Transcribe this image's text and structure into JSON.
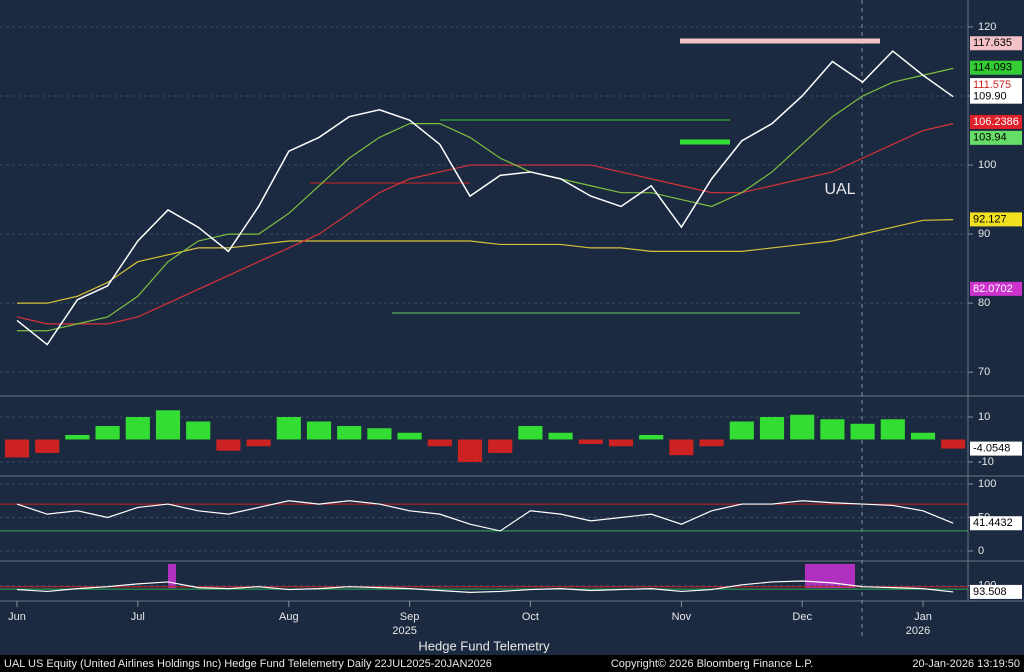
{
  "chart_data": [
    {
      "type": "line",
      "categories": [
        "Jun",
        null,
        null,
        null,
        "Jul",
        null,
        null,
        null,
        null,
        "Aug",
        null,
        null,
        null,
        "Sep",
        null,
        null,
        null,
        "Oct",
        null,
        null,
        null,
        null,
        "Nov",
        null,
        null,
        null,
        "Dec",
        null,
        null,
        null,
        "Jan",
        null
      ],
      "year_labels": [
        "2025",
        "2026"
      ],
      "series": [
        {
          "color": "#ffffff",
          "values": [
            77.5,
            74,
            80.5,
            82.5,
            89,
            93.5,
            91,
            87.5,
            94,
            102,
            104,
            107,
            108,
            106.5,
            103,
            95.5,
            98.5,
            99,
            98,
            95.5,
            94,
            97,
            91,
            98,
            103.5,
            106,
            110,
            115,
            112,
            116.5,
            113,
            109.9
          ]
        },
        {
          "color": "#7fbf3f",
          "values": [
            76,
            76,
            77,
            78,
            81,
            86,
            89,
            90,
            90,
            93,
            97,
            101,
            104,
            106,
            106,
            104,
            101,
            99,
            98,
            97,
            96,
            96,
            95,
            94,
            96,
            99,
            103,
            107,
            110,
            112,
            113,
            114
          ]
        },
        {
          "color": "#d8333a",
          "values": [
            78,
            77,
            77,
            77,
            78,
            80,
            82,
            84,
            86,
            88,
            90,
            93,
            96,
            98,
            99,
            100,
            100,
            100,
            100,
            100,
            99,
            98,
            97,
            96,
            96,
            97,
            98,
            99,
            101,
            103,
            105,
            106
          ]
        },
        {
          "color": "#d9c23a",
          "values": [
            80,
            80,
            81,
            83,
            86,
            87,
            88,
            88,
            88.5,
            89,
            89,
            89,
            89,
            89,
            89,
            89,
            88.5,
            88.5,
            88.5,
            88,
            88,
            87.5,
            87.5,
            87.5,
            87.5,
            88,
            88.5,
            89,
            90,
            91,
            92,
            92.1
          ]
        }
      ],
      "ylim": [
        66.7,
        123.9
      ],
      "yticks": [
        70,
        80,
        90,
        100,
        110,
        120
      ],
      "annotation": "UAL",
      "price_labels": [
        {
          "value": 117.635,
          "color": "#f4c2c6"
        },
        {
          "value": 114.093,
          "color": "#33cc33"
        },
        {
          "value": 111.575,
          "color": "#ffffff"
        },
        {
          "value": 109.9,
          "label": "109.90",
          "color": "#ffffff"
        },
        {
          "value": 106.2386,
          "color": "#e0202a"
        },
        {
          "value": 103.94,
          "color": "#66dd66"
        },
        {
          "value": 92.127,
          "color": "#f0e020"
        },
        {
          "value": 82.0702,
          "color": "#cc33cc"
        }
      ]
    },
    {
      "type": "histogram-bar",
      "values": [
        -8,
        -6,
        2,
        6,
        10,
        13,
        8,
        -5,
        -3,
        10,
        8,
        6,
        5,
        3,
        -3,
        -10,
        -6,
        6,
        3,
        -2,
        -3,
        2,
        -7,
        -3,
        8,
        10,
        11,
        9,
        7,
        9,
        3,
        -4.0548
      ],
      "colors": {
        "positive": "#33dd33",
        "negative": "#cc2222"
      },
      "ylim": [
        -15.8,
        18.9
      ],
      "yticks": [
        -10,
        10
      ],
      "last_label": -4.0548
    },
    {
      "type": "line",
      "values": [
        70,
        55,
        60,
        50,
        65,
        70,
        60,
        55,
        65,
        75,
        70,
        75,
        70,
        60,
        55,
        40,
        30,
        60,
        55,
        45,
        50,
        55,
        40,
        60,
        70,
        70,
        75,
        72,
        70,
        68,
        60,
        41.4432
      ],
      "color": "#ffffff",
      "levels": [
        {
          "value": 70,
          "color": "#cc2222"
        },
        {
          "value": 30,
          "color": "#33aa55"
        }
      ],
      "ylim": [
        -13.4,
        110.4
      ],
      "yticks": [
        0,
        50,
        100
      ],
      "last_label": 41.4432
    },
    {
      "type": "line",
      "values": [
        96,
        94,
        97,
        99,
        102,
        104,
        98,
        97,
        99,
        96,
        97,
        99,
        98,
        97,
        95,
        93,
        94,
        96,
        97,
        95,
        96,
        97,
        94,
        96,
        101,
        104,
        105,
        103,
        99,
        98,
        97,
        93.508
      ],
      "color": "#ffffff",
      "levels": [
        {
          "value": 99,
          "color": "#cc2222"
        },
        {
          "value": 96.5,
          "color": "#33aa55"
        }
      ],
      "ylim": [
        85,
        125
      ],
      "yticks": [
        100
      ],
      "last_label": 93.508
    }
  ],
  "subtitle": "Hedge Fund Telemetry",
  "footer": {
    "left": "UAL US Equity (United Airlines Holdings Inc) Hedge Fund Telelemetry Daily 22JUL2025-20JAN2026",
    "center": "Copyright© 2026 Bloomberg Finance L.P.",
    "right": "20-Jan-2026 13:19:50"
  }
}
